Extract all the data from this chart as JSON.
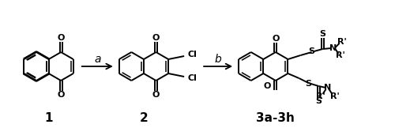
{
  "background_color": "#ffffff",
  "label1": "1",
  "label2": "2",
  "label3": "3a-3h",
  "arrow_label_a": "a",
  "arrow_label_b": "b",
  "figsize": [
    5.0,
    1.62
  ],
  "dpi": 100
}
